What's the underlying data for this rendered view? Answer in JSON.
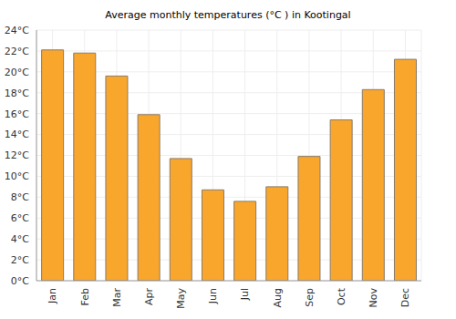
{
  "chart_data": {
    "type": "bar",
    "title": "Average monthly temperatures (°C ) in Kootingal",
    "categories": [
      "Jan",
      "Feb",
      "Mar",
      "Apr",
      "May",
      "Jun",
      "Jul",
      "Aug",
      "Sep",
      "Oct",
      "Nov",
      "Dec"
    ],
    "values": [
      22.1,
      21.8,
      19.6,
      15.9,
      11.7,
      8.7,
      7.6,
      9.0,
      11.9,
      15.4,
      18.3,
      21.2
    ],
    "color": "#f9a62c",
    "ylim": [
      0,
      24
    ],
    "yticks": [
      {
        "value": 0,
        "label": "0°C"
      },
      {
        "value": 2,
        "label": "2°C"
      },
      {
        "value": 4,
        "label": "4°C"
      },
      {
        "value": 6,
        "label": "6°C"
      },
      {
        "value": 8,
        "label": "8°C"
      },
      {
        "value": 10,
        "label": "10°C"
      },
      {
        "value": 12,
        "label": "12°C"
      },
      {
        "value": 14,
        "label": "14°C"
      },
      {
        "value": 16,
        "label": "16°C"
      },
      {
        "value": 18,
        "label": "18°C"
      },
      {
        "value": 20,
        "label": "20°C"
      },
      {
        "value": 22,
        "label": "22°C"
      },
      {
        "value": 24,
        "label": "24°C"
      }
    ],
    "grid": true
  }
}
